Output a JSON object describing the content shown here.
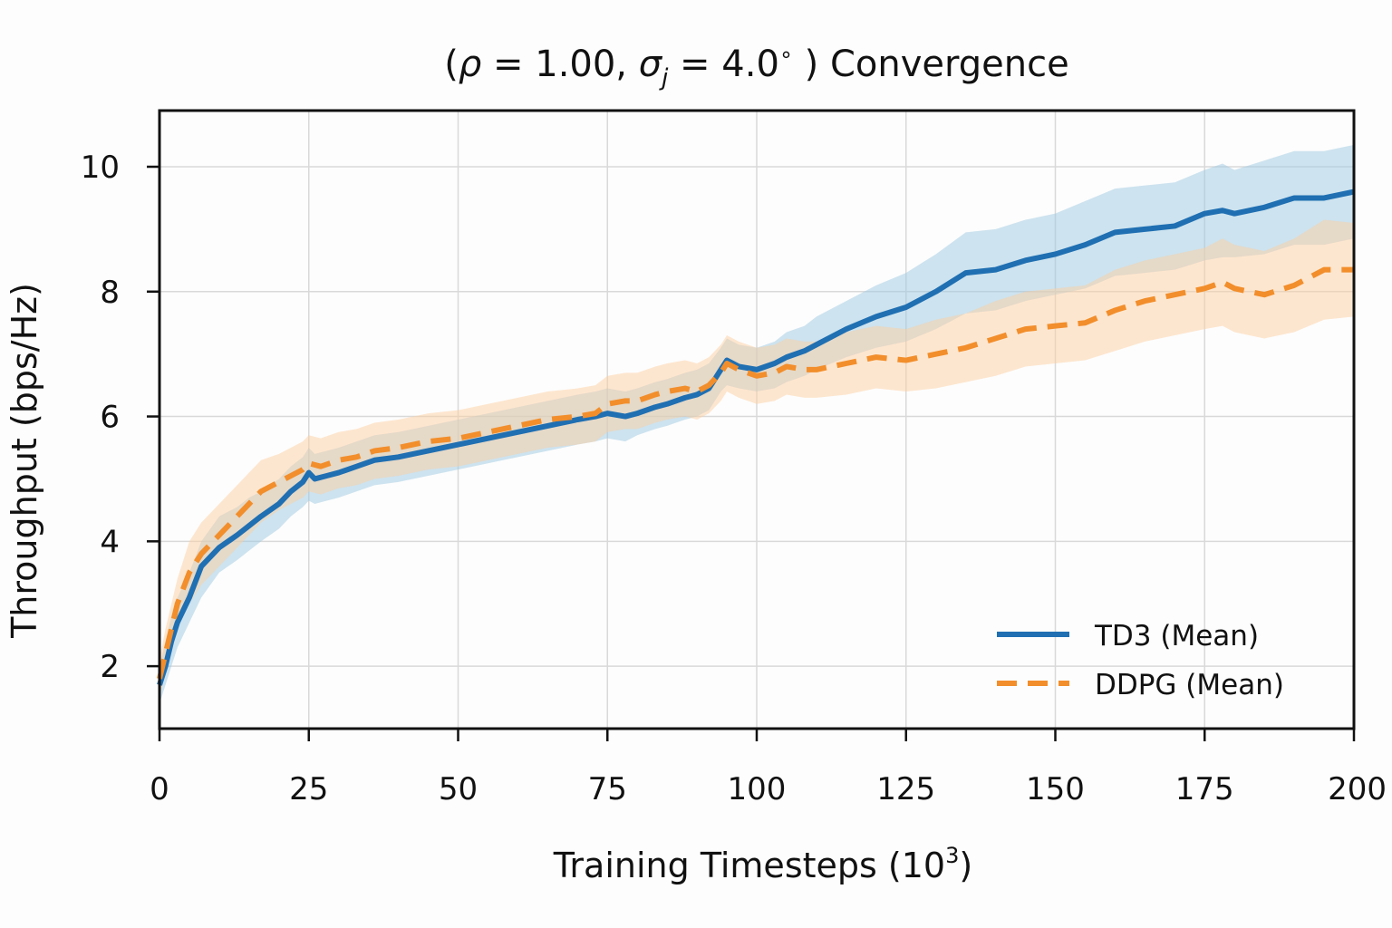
{
  "chart_data": {
    "type": "line",
    "title_prefix": "(",
    "title_rho": "ρ",
    "title_eq1": " = 1.00, ",
    "title_sigma": "σ",
    "title_sub": "j",
    "title_eq2": " = 4.0",
    "title_deg": "∘",
    "title_suffix": " ) Convergence",
    "xlabel_main": "Training Timesteps (10",
    "xlabel_exp": "3",
    "xlabel_close": ")",
    "ylabel": "Throughput (bps/Hz)",
    "xlim": [
      0,
      200
    ],
    "ylim": [
      1.0,
      10.9
    ],
    "xticks": [
      "0",
      "25",
      "50",
      "75",
      "100",
      "125",
      "150",
      "175",
      "200"
    ],
    "yticks": [
      "2",
      "4",
      "6",
      "8",
      "10"
    ],
    "grid": true,
    "legend_position": "lower-right",
    "series": [
      {
        "name": "TD3 (Mean)",
        "color": "#1f6fb2",
        "band_color": "#9ecae1",
        "style": "solid",
        "x": [
          0,
          1,
          2,
          3,
          5,
          7,
          10,
          13,
          15,
          17,
          20,
          22,
          24,
          25,
          26,
          28,
          30,
          33,
          36,
          40,
          45,
          50,
          55,
          60,
          65,
          70,
          73,
          75,
          78,
          80,
          83,
          85,
          88,
          90,
          92,
          94,
          95,
          97,
          100,
          103,
          105,
          108,
          110,
          115,
          120,
          125,
          130,
          135,
          140,
          145,
          150,
          155,
          160,
          165,
          170,
          175,
          178,
          180,
          185,
          190,
          195,
          200
        ],
        "y": [
          1.7,
          2.0,
          2.4,
          2.7,
          3.1,
          3.6,
          3.9,
          4.1,
          4.25,
          4.4,
          4.6,
          4.8,
          4.95,
          5.1,
          5.0,
          5.05,
          5.1,
          5.2,
          5.3,
          5.35,
          5.45,
          5.55,
          5.65,
          5.75,
          5.85,
          5.95,
          6.0,
          6.05,
          6.0,
          6.05,
          6.15,
          6.2,
          6.3,
          6.35,
          6.45,
          6.75,
          6.9,
          6.8,
          6.75,
          6.85,
          6.95,
          7.05,
          7.15,
          7.4,
          7.6,
          7.75,
          8.0,
          8.3,
          8.35,
          8.5,
          8.6,
          8.75,
          8.95,
          9.0,
          9.05,
          9.25,
          9.3,
          9.25,
          9.35,
          9.5,
          9.5,
          9.6
        ],
        "band_lo": [
          1.4,
          1.7,
          2.0,
          2.3,
          2.7,
          3.1,
          3.5,
          3.7,
          3.85,
          4.0,
          4.2,
          4.4,
          4.55,
          4.65,
          4.6,
          4.65,
          4.7,
          4.8,
          4.9,
          4.95,
          5.05,
          5.15,
          5.25,
          5.35,
          5.45,
          5.55,
          5.6,
          5.65,
          5.6,
          5.7,
          5.8,
          5.85,
          5.95,
          6.0,
          6.1,
          6.4,
          6.5,
          6.45,
          6.4,
          6.45,
          6.55,
          6.65,
          6.75,
          6.95,
          7.1,
          7.2,
          7.4,
          7.65,
          7.7,
          7.85,
          7.95,
          8.05,
          8.25,
          8.3,
          8.35,
          8.5,
          8.55,
          8.55,
          8.6,
          8.75,
          8.75,
          8.85
        ],
        "band_hi": [
          2.0,
          2.4,
          2.8,
          3.1,
          3.5,
          4.0,
          4.4,
          4.55,
          4.7,
          4.8,
          5.0,
          5.2,
          5.35,
          5.5,
          5.4,
          5.45,
          5.5,
          5.6,
          5.7,
          5.75,
          5.85,
          5.95,
          6.05,
          6.15,
          6.25,
          6.35,
          6.4,
          6.45,
          6.4,
          6.45,
          6.55,
          6.6,
          6.7,
          6.75,
          6.85,
          7.1,
          7.25,
          7.15,
          7.1,
          7.2,
          7.35,
          7.45,
          7.6,
          7.85,
          8.1,
          8.3,
          8.6,
          8.95,
          9.0,
          9.15,
          9.25,
          9.45,
          9.65,
          9.7,
          9.75,
          9.95,
          10.05,
          9.95,
          10.1,
          10.25,
          10.25,
          10.35
        ]
      },
      {
        "name": "DDPG (Mean)",
        "color": "#f28e2b",
        "band_color": "#fdd0a2",
        "style": "dashed",
        "x": [
          0,
          1,
          2,
          3,
          5,
          7,
          10,
          13,
          15,
          17,
          20,
          22,
          24,
          25,
          27,
          30,
          33,
          36,
          40,
          45,
          50,
          55,
          60,
          65,
          70,
          73,
          75,
          78,
          80,
          83,
          85,
          88,
          90,
          92,
          94,
          95,
          97,
          100,
          103,
          105,
          108,
          110,
          115,
          120,
          125,
          130,
          135,
          140,
          145,
          150,
          155,
          160,
          165,
          170,
          175,
          178,
          180,
          185,
          190,
          195,
          200
        ],
        "y": [
          1.8,
          2.2,
          2.6,
          3.0,
          3.5,
          3.8,
          4.1,
          4.4,
          4.6,
          4.8,
          4.95,
          5.05,
          5.15,
          5.25,
          5.2,
          5.3,
          5.35,
          5.45,
          5.5,
          5.6,
          5.65,
          5.75,
          5.85,
          5.95,
          6.0,
          6.05,
          6.2,
          6.25,
          6.25,
          6.35,
          6.4,
          6.45,
          6.4,
          6.5,
          6.7,
          6.85,
          6.75,
          6.65,
          6.7,
          6.8,
          6.75,
          6.75,
          6.85,
          6.95,
          6.9,
          7.0,
          7.1,
          7.25,
          7.4,
          7.45,
          7.5,
          7.7,
          7.85,
          7.95,
          8.05,
          8.15,
          8.05,
          7.95,
          8.1,
          8.35,
          8.35
        ],
        "band_lo": [
          1.5,
          1.9,
          2.2,
          2.6,
          3.0,
          3.3,
          3.6,
          3.9,
          4.1,
          4.3,
          4.5,
          4.6,
          4.7,
          4.8,
          4.75,
          4.85,
          4.9,
          5.0,
          5.05,
          5.15,
          5.2,
          5.3,
          5.4,
          5.5,
          5.55,
          5.6,
          5.75,
          5.8,
          5.8,
          5.9,
          5.95,
          6.0,
          5.95,
          6.05,
          6.25,
          6.4,
          6.3,
          6.2,
          6.25,
          6.35,
          6.3,
          6.3,
          6.35,
          6.45,
          6.4,
          6.45,
          6.55,
          6.65,
          6.8,
          6.85,
          6.9,
          7.05,
          7.2,
          7.3,
          7.4,
          7.45,
          7.35,
          7.25,
          7.35,
          7.55,
          7.6
        ],
        "band_hi": [
          2.1,
          2.6,
          3.0,
          3.4,
          4.0,
          4.3,
          4.6,
          4.9,
          5.1,
          5.3,
          5.4,
          5.5,
          5.6,
          5.7,
          5.65,
          5.75,
          5.8,
          5.9,
          5.95,
          6.05,
          6.1,
          6.2,
          6.3,
          6.4,
          6.45,
          6.5,
          6.65,
          6.7,
          6.7,
          6.8,
          6.85,
          6.9,
          6.85,
          6.95,
          7.15,
          7.3,
          7.2,
          7.1,
          7.15,
          7.25,
          7.2,
          7.2,
          7.35,
          7.45,
          7.4,
          7.55,
          7.65,
          7.85,
          8.0,
          8.05,
          8.1,
          8.35,
          8.5,
          8.6,
          8.7,
          8.85,
          8.75,
          8.65,
          8.85,
          9.15,
          9.1
        ]
      }
    ]
  }
}
